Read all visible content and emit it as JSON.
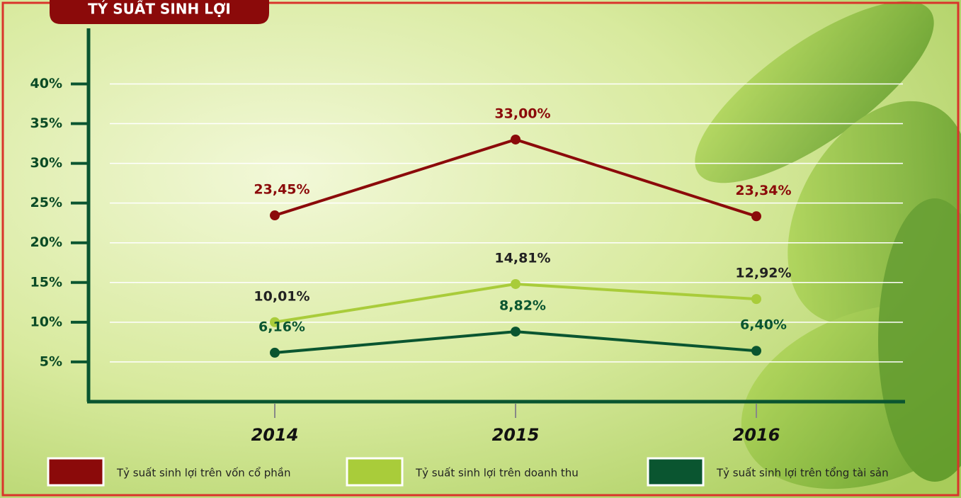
{
  "chart_data": {
    "type": "line",
    "title": "TỶ SUẤT SINH LỢI",
    "categories": [
      "2014",
      "2015",
      "2016"
    ],
    "series": [
      {
        "name": "Tỷ suất sinh lợi trên vốn cổ phần",
        "color": "#8b0a0a",
        "values": [
          23.45,
          33.0,
          23.34
        ],
        "value_labels": [
          "23,45%",
          "33,00%",
          "23,34%"
        ]
      },
      {
        "name": "Tỷ suất sinh lợi trên doanh thu",
        "color": "#a9cc3a",
        "values": [
          10.01,
          14.81,
          12.92
        ],
        "value_labels": [
          "10,01%",
          "14,81%",
          "12,92%"
        ]
      },
      {
        "name": "Tỷ suất sinh lợi trên tổng tài sản",
        "color": "#0a5530",
        "values": [
          6.16,
          8.82,
          6.4
        ],
        "value_labels": [
          "6,16%",
          "8,82%",
          "6,40%"
        ]
      }
    ],
    "ylim": [
      0,
      47
    ],
    "yticks": [
      {
        "value": 5,
        "label": "5%"
      },
      {
        "value": 10,
        "label": "10%"
      },
      {
        "value": 15,
        "label": "15%"
      },
      {
        "value": 20,
        "label": "20%"
      },
      {
        "value": 25,
        "label": "25%"
      },
      {
        "value": 30,
        "label": "30%"
      },
      {
        "value": 35,
        "label": "35%"
      },
      {
        "value": 40,
        "label": "40%"
      }
    ],
    "grid": true,
    "legend": "bottom"
  }
}
